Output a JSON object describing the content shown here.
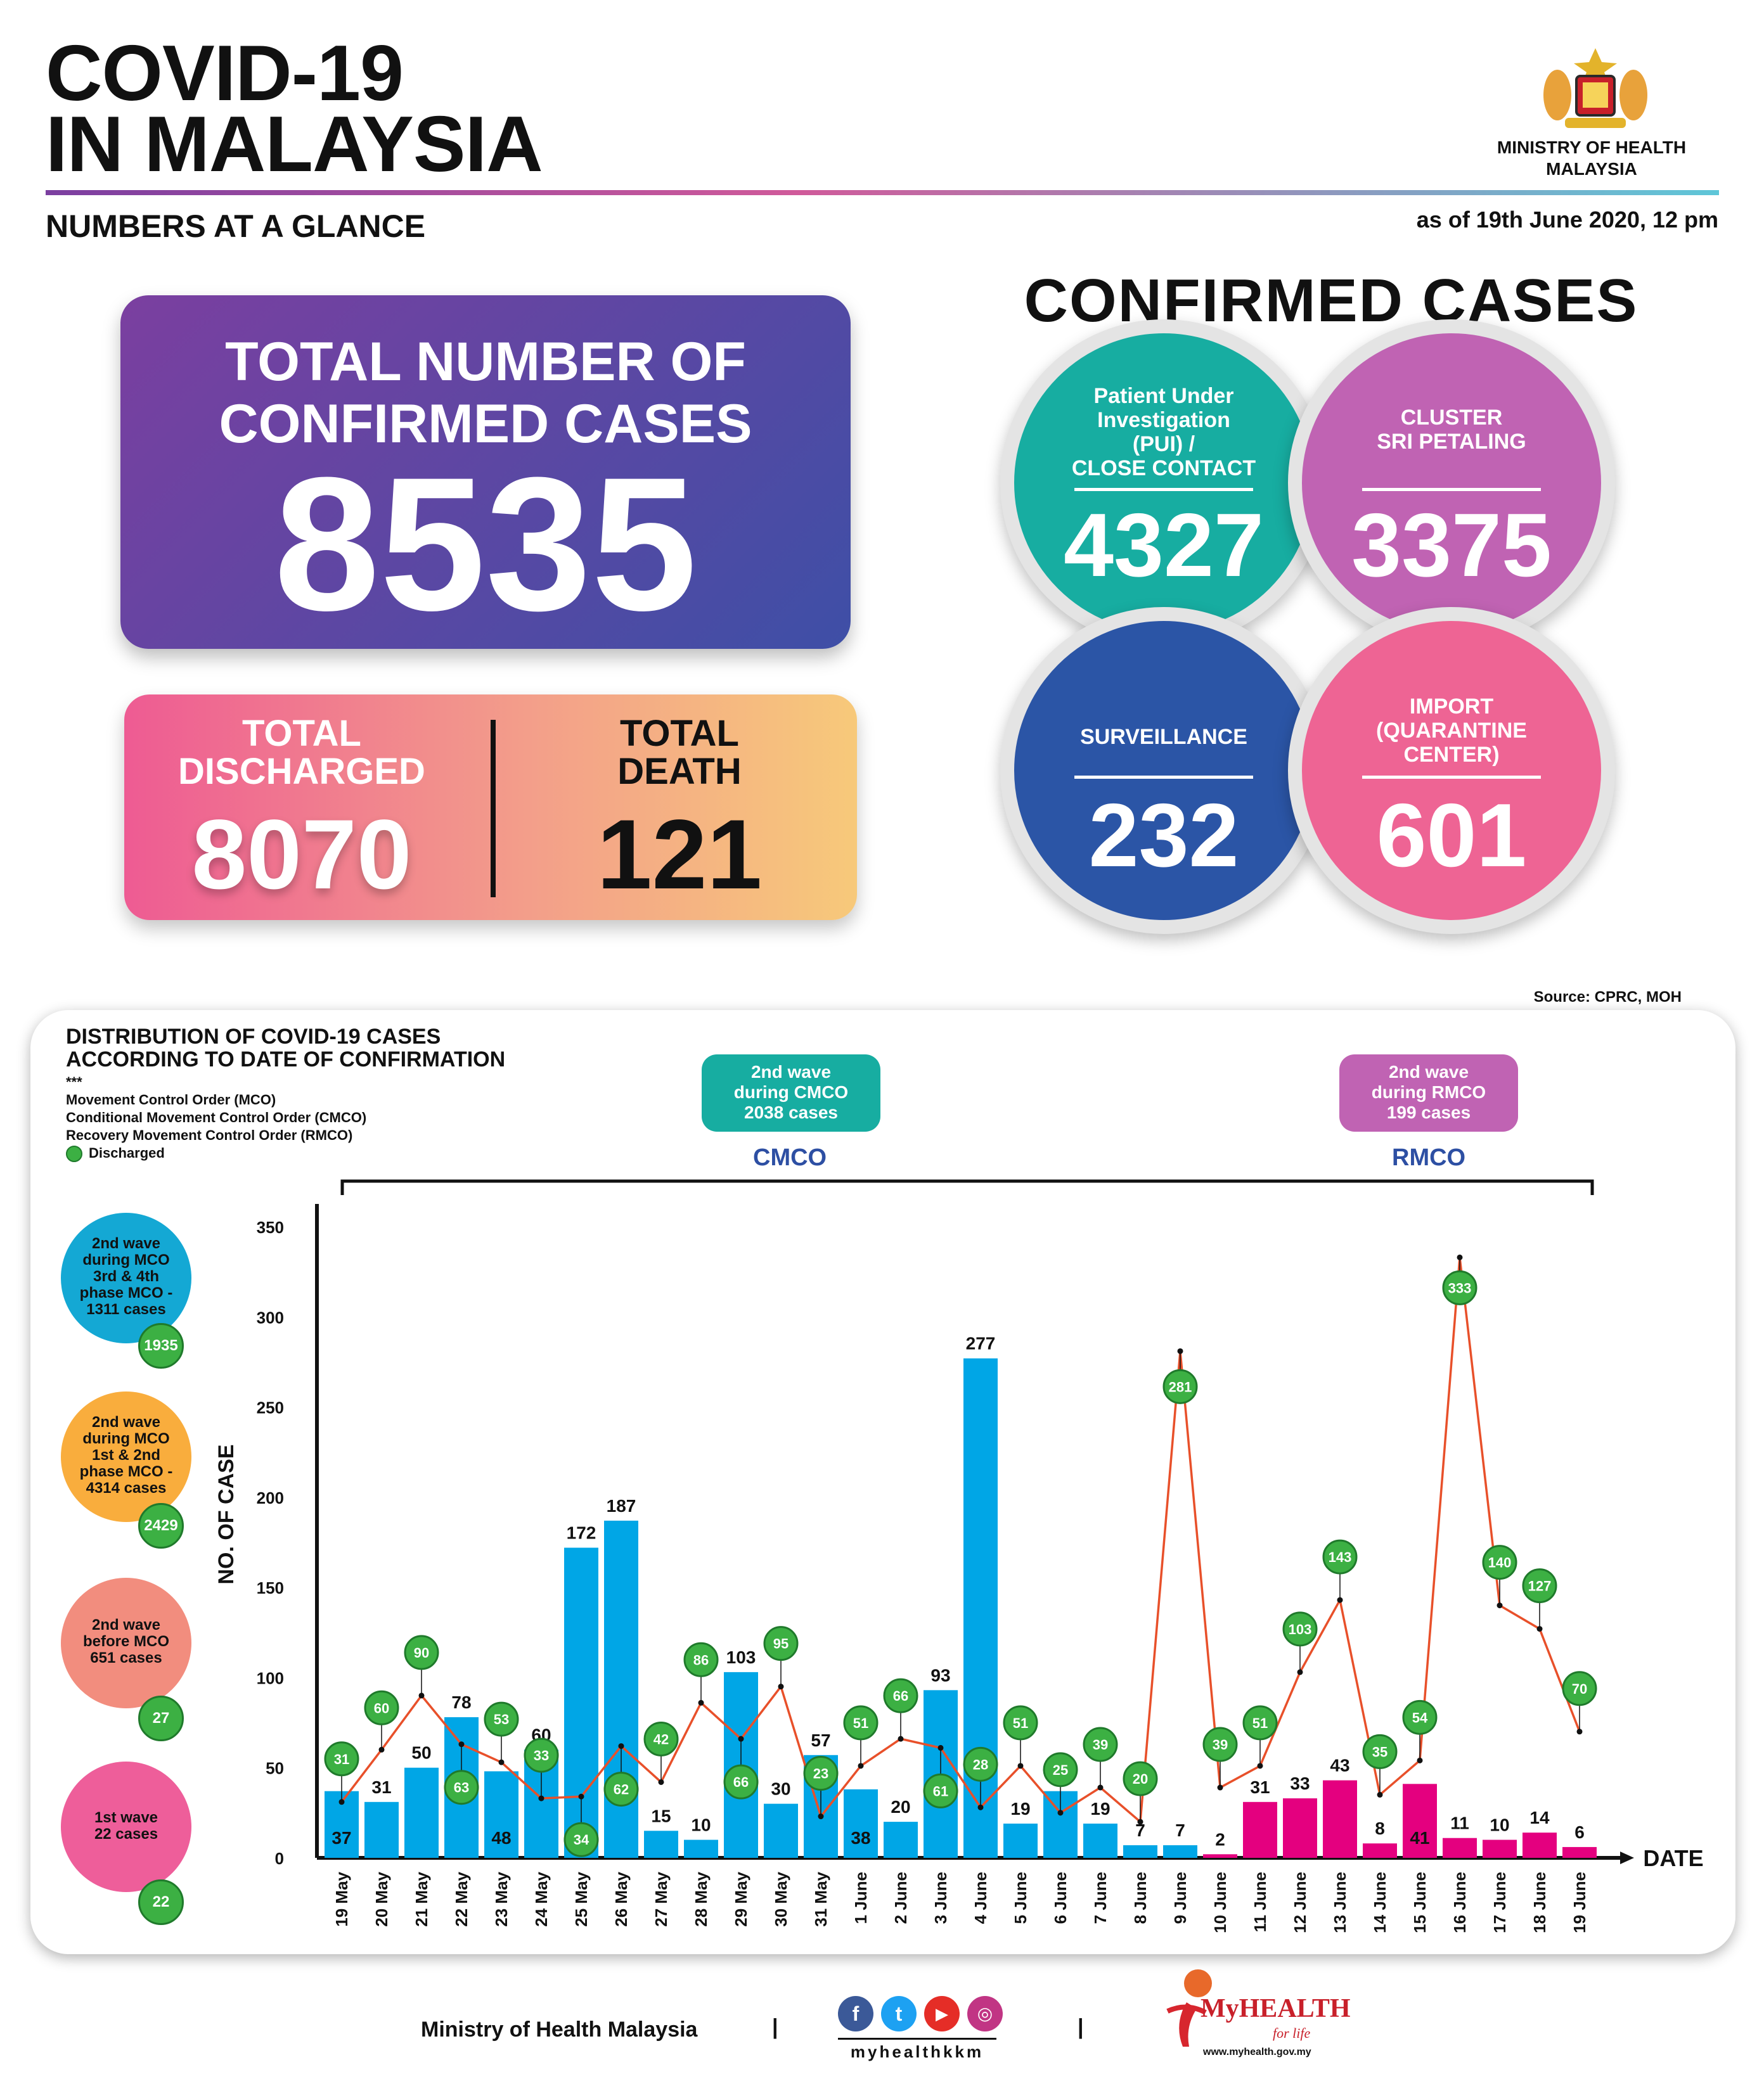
{
  "header": {
    "title_line1": "COVID-19",
    "title_line2": "IN MALAYSIA",
    "subtitle": "NUMBERS AT A GLANCE",
    "ministry_line1": "MINISTRY OF HEALTH",
    "ministry_line2": "MALAYSIA",
    "as_of": "as of 19th June 2020, 12 pm"
  },
  "totals": {
    "confirmed_label_1": "TOTAL NUMBER OF",
    "confirmed_label_2": "CONFIRMED CASES",
    "confirmed": "8535",
    "discharged_label_1": "TOTAL",
    "discharged_label_2": "DISCHARGED",
    "discharged": "8070",
    "death_label_1": "TOTAL",
    "death_label_2": "DEATH",
    "death": "121"
  },
  "confirmed_breakdown": {
    "title": "CONFIRMED CASES",
    "pui": {
      "l1": "Patient Under",
      "l2": "Investigation",
      "l3": "(PUI) /",
      "l4": "CLOSE CONTACT",
      "value": "4327",
      "color": "#17ada1"
    },
    "cluster": {
      "l1": "CLUSTER",
      "l2": "SRI PETALING",
      "value": "3375",
      "color": "#c063b3"
    },
    "surveillance": {
      "l1": "SURVEILLANCE",
      "value": "232",
      "color": "#2b55a6"
    },
    "import": {
      "l1": "IMPORT",
      "l2": "(QUARANTINE",
      "l3": "CENTER)",
      "value": "601",
      "color": "#ee6494"
    }
  },
  "source": "Source: CPRC, MOH",
  "panel": {
    "title_1": "DISTRIBUTION OF COVID-19 CASES",
    "title_2": "ACCORDING TO DATE OF CONFIRMATION",
    "stars": "***",
    "legend_mco": "Movement Control Order (MCO)",
    "legend_cmco": "Conditional Movement Control Order (CMCO)",
    "legend_rmco": "Recovery Movement Control Order (RMCO)",
    "legend_discharged": "Discharged",
    "cmco_box": {
      "l1": "2nd wave",
      "l2": "during CMCO",
      "l3": "2038 cases"
    },
    "rmco_box": {
      "l1": "2nd wave",
      "l2": "during RMCO",
      "l3": "199 cases"
    },
    "cmco_label": "CMCO",
    "rmco_label": "RMCO",
    "waves": [
      {
        "l1": "2nd wave",
        "l2": "during MCO",
        "l3": "3rd & 4th",
        "l4": "phase MCO -",
        "l5": "1311 cases",
        "discharged": "1935",
        "color": "#14a8d4"
      },
      {
        "l1": "2nd wave",
        "l2": "during MCO",
        "l3": "1st & 2nd",
        "l4": "phase MCO -",
        "l5": "4314 cases",
        "discharged": "2429",
        "color": "#f9ad3d"
      },
      {
        "l1": "2nd wave",
        "l2": "before MCO",
        "l3": "651 cases",
        "discharged": "27",
        "color": "#f28d7e"
      },
      {
        "l1": "1st wave",
        "l2": "22 cases",
        "discharged": "22",
        "color": "#ee5e9a"
      }
    ]
  },
  "chart_data": {
    "type": "bar",
    "ylabel": "NO. OF CASE",
    "xlabel": "DATE",
    "ylim": [
      0,
      350
    ],
    "yticks": [
      0,
      50,
      100,
      150,
      200,
      250,
      300,
      350
    ],
    "categories": [
      "19 May",
      "20 May",
      "21 May",
      "22 May",
      "23 May",
      "24 May",
      "25 May",
      "26 May",
      "27 May",
      "28 May",
      "29 May",
      "30 May",
      "31 May",
      "1 June",
      "2 June",
      "3 June",
      "4 June",
      "5 June",
      "6 June",
      "7 June",
      "8 June",
      "9 June",
      "10 June",
      "11 June",
      "12 June",
      "13 June",
      "14 June",
      "15 June",
      "16 June",
      "17 June",
      "18 June",
      "19 June"
    ],
    "series": [
      {
        "values": [
          37,
          31,
          50,
          78,
          48,
          60,
          172,
          187,
          15,
          10,
          103,
          30,
          57,
          38,
          20,
          93,
          277,
          19,
          37,
          19,
          7,
          7,
          2,
          31,
          33,
          43,
          8,
          41,
          11,
          10,
          14,
          6
        ],
        "colors": [
          "#00a6e6",
          "#00a6e6",
          "#00a6e6",
          "#00a6e6",
          "#00a6e6",
          "#00a6e6",
          "#00a6e6",
          "#00a6e6",
          "#00a6e6",
          "#00a6e6",
          "#00a6e6",
          "#00a6e6",
          "#00a6e6",
          "#00a6e6",
          "#00a6e6",
          "#00a6e6",
          "#00a6e6",
          "#00a6e6",
          "#00a6e6",
          "#00a6e6",
          "#00a6e6",
          "#00a6e6",
          "#e4007f",
          "#e4007f",
          "#e4007f",
          "#e4007f",
          "#e4007f",
          "#e4007f",
          "#e4007f",
          "#e4007f",
          "#e4007f",
          "#e4007f"
        ]
      },
      {
        "name": "Discharged",
        "values": [
          31,
          60,
          90,
          63,
          53,
          33,
          34,
          62,
          42,
          86,
          66,
          95,
          23,
          51,
          66,
          61,
          28,
          51,
          25,
          39,
          20,
          281,
          39,
          51,
          103,
          143,
          35,
          54,
          333,
          140,
          127,
          70
        ],
        "color": "#3cb043"
      }
    ]
  },
  "footer": {
    "ministry": "Ministry of Health Malaysia",
    "handle": "myhealthkkm",
    "brand": "MyHEALTH",
    "brand_tag": "for life",
    "url": "www.myhealth.gov.my",
    "sep": "|"
  }
}
